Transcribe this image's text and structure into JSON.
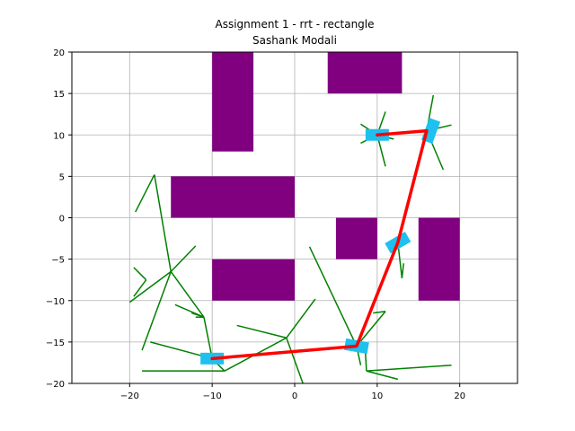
{
  "chart_data": {
    "type": "line",
    "title": "Assignment 1 - rrt - rectangle",
    "subtitle": "Sashank Modali",
    "xlim": [
      -27,
      27
    ],
    "ylim": [
      -20,
      20
    ],
    "xticks": [
      -20,
      -10,
      0,
      10,
      20
    ],
    "yticks": [
      -20,
      -15,
      -10,
      -5,
      0,
      5,
      10,
      15,
      20
    ],
    "grid": true,
    "colors": {
      "obstacle": "#800080",
      "tree": "#008000",
      "path": "#ff0000",
      "robot": "#1ec0f0",
      "grid": "#b0b0b0"
    },
    "obstacles": [
      {
        "x0": -10,
        "x1": -5,
        "y0": 8,
        "y1": 20
      },
      {
        "x0": 4,
        "x1": 13,
        "y0": 15,
        "y1": 20
      },
      {
        "x0": -15,
        "x1": 0,
        "y0": 0,
        "y1": 5
      },
      {
        "x0": 5,
        "x1": 10,
        "y0": -5,
        "y1": 0
      },
      {
        "x0": 15,
        "x1": 20,
        "y0": -10,
        "y1": 0
      },
      {
        "x0": -10,
        "x1": 0,
        "y0": -10,
        "y1": -5
      }
    ],
    "tree_edges": [
      [
        [
          -10,
          -17
        ],
        [
          -11,
          -12
        ]
      ],
      [
        [
          -11,
          -12
        ],
        [
          -12.5,
          -11.5
        ]
      ],
      [
        [
          -11,
          -12
        ],
        [
          -12,
          -12
        ]
      ],
      [
        [
          -11,
          -12
        ],
        [
          -14.5,
          -10.5
        ]
      ],
      [
        [
          -11,
          -12
        ],
        [
          -15,
          -6.5
        ]
      ],
      [
        [
          -15,
          -6.5
        ],
        [
          -20,
          -10.2
        ]
      ],
      [
        [
          -15,
          -6.5
        ],
        [
          -18.5,
          -16
        ]
      ],
      [
        [
          -15,
          -6.5
        ],
        [
          -17,
          5.2
        ]
      ],
      [
        [
          -15,
          -6.5
        ],
        [
          -12,
          -3.4
        ]
      ],
      [
        [
          -17,
          5.2
        ],
        [
          -19.3,
          0.7
        ]
      ],
      [
        [
          -18,
          -7.5
        ],
        [
          -19.5,
          -9.5
        ]
      ],
      [
        [
          -18,
          -7.5
        ],
        [
          -19.5,
          -6
        ]
      ],
      [
        [
          -10,
          -17
        ],
        [
          -17.5,
          -15
        ]
      ],
      [
        [
          -10,
          -17
        ],
        [
          -8.5,
          -18.5
        ]
      ],
      [
        [
          -8.5,
          -18.5
        ],
        [
          -18.5,
          -18.5
        ]
      ],
      [
        [
          -8.5,
          -18.5
        ],
        [
          -1,
          -14.5
        ]
      ],
      [
        [
          -1,
          -14.5
        ],
        [
          -7,
          -13
        ]
      ],
      [
        [
          -1,
          -14.5
        ],
        [
          2.5,
          -9.8
        ]
      ],
      [
        [
          -1,
          -14.5
        ],
        [
          1,
          -20
        ]
      ],
      [
        [
          7.5,
          -15.5
        ],
        [
          1.8,
          -3.5
        ]
      ],
      [
        [
          7.5,
          -15.5
        ],
        [
          11,
          -11.3
        ]
      ],
      [
        [
          7.5,
          -15.5
        ],
        [
          8,
          -17.8
        ]
      ],
      [
        [
          8.5,
          -15
        ],
        [
          8.7,
          -18.5
        ]
      ],
      [
        [
          8.7,
          -18.5
        ],
        [
          12.5,
          -19.5
        ]
      ],
      [
        [
          8.7,
          -18.5
        ],
        [
          19,
          -17.8
        ]
      ],
      [
        [
          9.5,
          -11.5
        ],
        [
          11,
          -11.3
        ]
      ],
      [
        [
          12.5,
          -3
        ],
        [
          13,
          -7.3
        ]
      ],
      [
        [
          13,
          -7.3
        ],
        [
          13.2,
          -5.5
        ]
      ],
      [
        [
          10,
          10
        ],
        [
          8,
          11.3
        ]
      ],
      [
        [
          10,
          10
        ],
        [
          8,
          9
        ]
      ],
      [
        [
          10,
          10
        ],
        [
          11,
          12.8
        ]
      ],
      [
        [
          10,
          10
        ],
        [
          12,
          9.5
        ]
      ],
      [
        [
          10,
          10
        ],
        [
          11,
          6.2
        ]
      ],
      [
        [
          16,
          10.5
        ],
        [
          16.8,
          14.8
        ]
      ],
      [
        [
          16,
          10.5
        ],
        [
          19,
          11.2
        ]
      ],
      [
        [
          16,
          10.5
        ],
        [
          18,
          5.8
        ]
      ]
    ],
    "path": [
      [
        -10,
        -17
      ],
      [
        7.5,
        -15.5
      ],
      [
        12.5,
        -3
      ],
      [
        16,
        10.5
      ],
      [
        10,
        10
      ]
    ],
    "robots": [
      {
        "x": -10,
        "y": -17,
        "angle": 0
      },
      {
        "x": 7.5,
        "y": -15.5,
        "angle": 10
      },
      {
        "x": 12.5,
        "y": -3,
        "angle": -30
      },
      {
        "x": 16.5,
        "y": 10.5,
        "angle": -70
      },
      {
        "x": 10,
        "y": 10,
        "angle": 0
      }
    ]
  }
}
